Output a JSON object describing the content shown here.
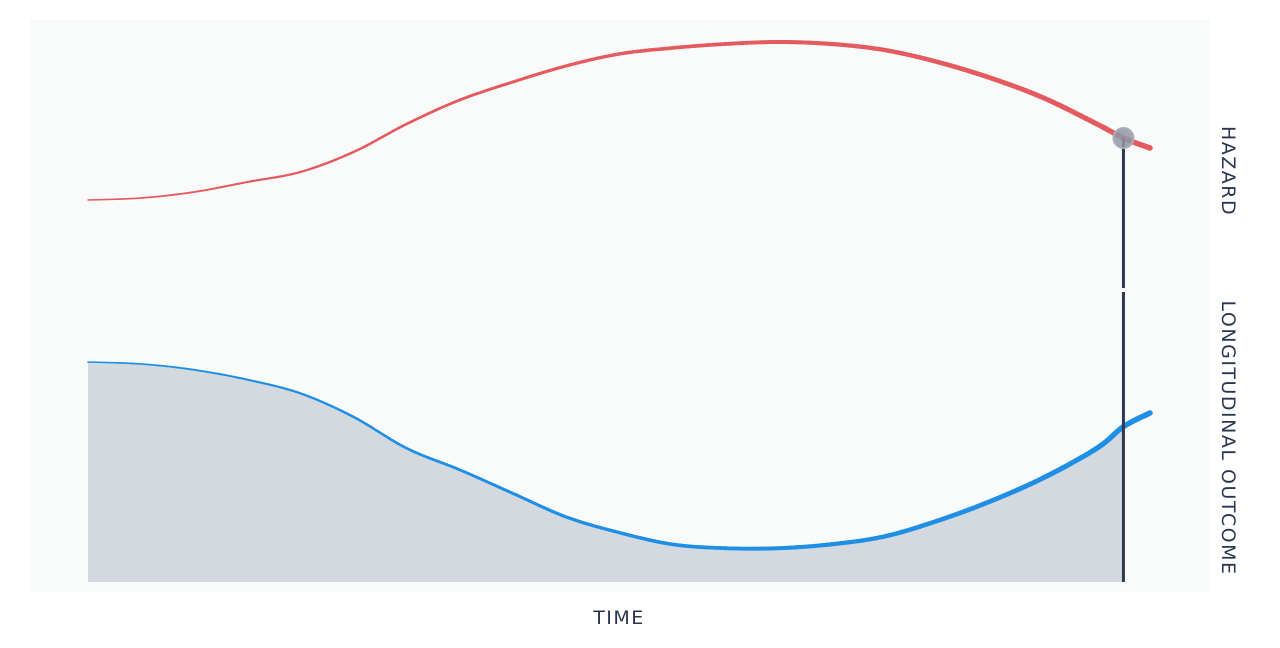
{
  "chart_data": {
    "type": "line",
    "xlabel": "TIME",
    "right_labels": {
      "top": "HAZARD",
      "bottom": "LONGITUDINAL OUTCOME"
    },
    "xlim": [
      0,
      1
    ],
    "marker_x": 0.975,
    "series": [
      {
        "role": "hazard",
        "color": "#e45a5e",
        "points": [
          [
            0.0,
            0.24
          ],
          [
            0.05,
            0.25
          ],
          [
            0.1,
            0.28
          ],
          [
            0.15,
            0.33
          ],
          [
            0.2,
            0.38
          ],
          [
            0.25,
            0.48
          ],
          [
            0.3,
            0.62
          ],
          [
            0.35,
            0.74
          ],
          [
            0.4,
            0.83
          ],
          [
            0.45,
            0.91
          ],
          [
            0.5,
            0.97
          ],
          [
            0.55,
            1.0
          ],
          [
            0.6,
            1.02
          ],
          [
            0.65,
            1.03
          ],
          [
            0.7,
            1.02
          ],
          [
            0.75,
            0.99
          ],
          [
            0.8,
            0.93
          ],
          [
            0.85,
            0.85
          ],
          [
            0.9,
            0.75
          ],
          [
            0.95,
            0.62
          ],
          [
            0.975,
            0.55
          ],
          [
            1.0,
            0.5
          ]
        ]
      },
      {
        "role": "longitudinal-outcome",
        "color": "#1f8fe6",
        "fill": "#d3d9de",
        "points": [
          [
            0.0,
            1.0
          ],
          [
            0.05,
            0.99
          ],
          [
            0.1,
            0.96
          ],
          [
            0.15,
            0.91
          ],
          [
            0.2,
            0.84
          ],
          [
            0.25,
            0.72
          ],
          [
            0.3,
            0.56
          ],
          [
            0.35,
            0.45
          ],
          [
            0.4,
            0.33
          ],
          [
            0.45,
            0.21
          ],
          [
            0.5,
            0.13
          ],
          [
            0.55,
            0.07
          ],
          [
            0.6,
            0.05
          ],
          [
            0.65,
            0.05
          ],
          [
            0.7,
            0.07
          ],
          [
            0.75,
            0.11
          ],
          [
            0.8,
            0.19
          ],
          [
            0.85,
            0.29
          ],
          [
            0.9,
            0.41
          ],
          [
            0.95,
            0.56
          ],
          [
            0.975,
            0.67
          ],
          [
            1.0,
            0.74
          ]
        ]
      }
    ],
    "colors": {
      "background": "#f9fbfb",
      "marker_line": "#2d3a52",
      "marker_dot": "#8f98a6"
    }
  }
}
